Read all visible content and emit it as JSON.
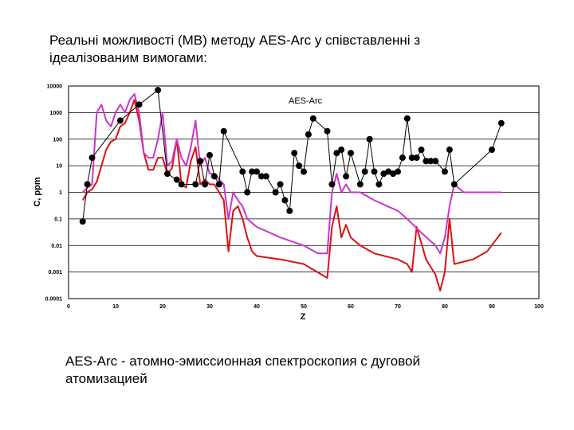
{
  "page": {
    "title": "Реальні можливості (МВ) методу AES-Arc у співставленні з\nідеалізованим вимогами:",
    "caption": "AES-Arc - атомно-эмиссионная спектроскопия с дуговой\nатомизацией"
  },
  "chart_data": {
    "type": "scatter",
    "title": "",
    "xlabel": "Z",
    "ylabel": "C, ppm",
    "annotation": "AES-Arc",
    "xlim": [
      0,
      100
    ],
    "ylim": [
      0.0001,
      10000
    ],
    "log_y": true,
    "grid": "horizontal",
    "x_ticks": [
      "0",
      "10",
      "20",
      "30",
      "40",
      "50",
      "60",
      "70",
      "80",
      "90",
      "100"
    ],
    "y_ticks": [
      "10000",
      "1000",
      "100",
      "10",
      "1",
      "0.1",
      "0.01",
      "0.001",
      "0.0001"
    ],
    "colors": {
      "points": "#000000",
      "red_curve": "#dd1111",
      "magenta_curve": "#cc33cc"
    },
    "series": [
      {
        "values": [
          [
            3,
            0.08
          ],
          [
            4,
            2
          ],
          [
            5,
            20
          ],
          [
            11,
            500
          ],
          [
            15,
            2000
          ],
          [
            19,
            7000
          ],
          [
            21,
            5
          ],
          [
            23,
            3
          ],
          [
            24,
            2
          ],
          [
            27,
            2
          ],
          [
            28,
            15
          ],
          [
            29,
            2
          ],
          [
            30,
            25
          ],
          [
            31,
            4
          ],
          [
            32,
            2
          ],
          [
            33,
            200
          ],
          [
            37,
            6
          ],
          [
            38,
            1
          ],
          [
            39,
            6
          ],
          [
            40,
            6
          ],
          [
            41,
            4
          ],
          [
            42,
            4
          ],
          [
            44,
            1
          ],
          [
            45,
            2
          ],
          [
            46,
            0.5
          ],
          [
            47,
            0.2
          ],
          [
            48,
            30
          ],
          [
            49,
            10
          ],
          [
            50,
            6
          ],
          [
            51,
            150
          ],
          [
            52,
            600
          ],
          [
            55,
            200
          ],
          [
            56,
            2
          ],
          [
            57,
            30
          ],
          [
            58,
            40
          ],
          [
            59,
            4
          ],
          [
            60,
            30
          ],
          [
            62,
            2
          ],
          [
            63,
            6
          ],
          [
            64,
            100
          ],
          [
            65,
            6
          ],
          [
            66,
            2
          ],
          [
            67,
            5
          ],
          [
            68,
            6
          ],
          [
            69,
            5
          ],
          [
            70,
            6
          ],
          [
            71,
            20
          ],
          [
            72,
            600
          ],
          [
            73,
            20
          ],
          [
            74,
            20
          ],
          [
            75,
            40
          ],
          [
            76,
            15
          ],
          [
            77,
            15
          ],
          [
            78,
            15
          ],
          [
            80,
            6
          ],
          [
            81,
            40
          ],
          [
            82,
            2
          ],
          [
            90,
            40
          ],
          [
            92,
            400
          ]
        ]
      }
    ],
    "curves": [
      {
        "color": "red",
        "values": [
          [
            3,
            0.5
          ],
          [
            4,
            1
          ],
          [
            5,
            1.3
          ],
          [
            6,
            2.5
          ],
          [
            7,
            10
          ],
          [
            8,
            40
          ],
          [
            9,
            80
          ],
          [
            10,
            100
          ],
          [
            11,
            300
          ],
          [
            12,
            400
          ],
          [
            13,
            1000
          ],
          [
            14,
            3000
          ],
          [
            15,
            500
          ],
          [
            16,
            30
          ],
          [
            17,
            7
          ],
          [
            18,
            7
          ],
          [
            19,
            20
          ],
          [
            20,
            20
          ],
          [
            21,
            5
          ],
          [
            22,
            8
          ],
          [
            23,
            100
          ],
          [
            24,
            2
          ],
          [
            25,
            1.5
          ],
          [
            26,
            15
          ],
          [
            27,
            50
          ],
          [
            28,
            2
          ],
          [
            29,
            3
          ],
          [
            30,
            2
          ],
          [
            31,
            2
          ],
          [
            32,
            1
          ],
          [
            33,
            0.5
          ],
          [
            34,
            0.006
          ],
          [
            35,
            0.2
          ],
          [
            36,
            0.3
          ],
          [
            37,
            0.1
          ],
          [
            38,
            0.02
          ],
          [
            39,
            0.006
          ],
          [
            40,
            0.004
          ],
          [
            45,
            0.003
          ],
          [
            50,
            0.002
          ],
          [
            55,
            0.0006
          ],
          [
            56,
            0.05
          ],
          [
            57,
            0.3
          ],
          [
            58,
            0.02
          ],
          [
            59,
            0.06
          ],
          [
            60,
            0.02
          ],
          [
            62,
            0.01
          ],
          [
            65,
            0.005
          ],
          [
            70,
            0.003
          ],
          [
            72,
            0.002
          ],
          [
            73,
            0.001
          ],
          [
            74,
            0.05
          ],
          [
            76,
            0.003
          ],
          [
            78,
            0.0008
          ],
          [
            79,
            0.0002
          ],
          [
            80,
            0.001
          ],
          [
            81,
            0.1
          ],
          [
            82,
            0.002
          ],
          [
            86,
            0.003
          ],
          [
            89,
            0.006
          ],
          [
            92,
            0.03
          ]
        ]
      },
      {
        "color": "magenta",
        "values": [
          [
            3,
            1
          ],
          [
            4,
            1.5
          ],
          [
            5,
            2
          ],
          [
            6,
            1000
          ],
          [
            7,
            2000
          ],
          [
            8,
            500
          ],
          [
            9,
            300
          ],
          [
            10,
            1000
          ],
          [
            11,
            2000
          ],
          [
            12,
            1000
          ],
          [
            13,
            3000
          ],
          [
            14,
            5000
          ],
          [
            15,
            1000
          ],
          [
            16,
            30
          ],
          [
            17,
            20
          ],
          [
            18,
            20
          ],
          [
            19,
            100
          ],
          [
            20,
            1000
          ],
          [
            21,
            10
          ],
          [
            22,
            15
          ],
          [
            23,
            100
          ],
          [
            24,
            20
          ],
          [
            25,
            10
          ],
          [
            26,
            50
          ],
          [
            27,
            500
          ],
          [
            28,
            10
          ],
          [
            29,
            20
          ],
          [
            30,
            5
          ],
          [
            31,
            5
          ],
          [
            32,
            3
          ],
          [
            33,
            2
          ],
          [
            34,
            0.1
          ],
          [
            35,
            1
          ],
          [
            36,
            0.5
          ],
          [
            37,
            0.3
          ],
          [
            38,
            0.1
          ],
          [
            40,
            0.05
          ],
          [
            45,
            0.02
          ],
          [
            50,
            0.01
          ],
          [
            53,
            0.005
          ],
          [
            55,
            0.005
          ],
          [
            56,
            1
          ],
          [
            57,
            5
          ],
          [
            58,
            1
          ],
          [
            59,
            2
          ],
          [
            60,
            1
          ],
          [
            62,
            1
          ],
          [
            65,
            0.5
          ],
          [
            70,
            0.2
          ],
          [
            72,
            0.1
          ],
          [
            75,
            0.03
          ],
          [
            78,
            0.01
          ],
          [
            79,
            0.005
          ],
          [
            80,
            0.02
          ],
          [
            81,
            0.3
          ],
          [
            82,
            2
          ],
          [
            84,
            1
          ],
          [
            86,
            1
          ],
          [
            89,
            1
          ],
          [
            92,
            1
          ]
        ]
      }
    ]
  }
}
